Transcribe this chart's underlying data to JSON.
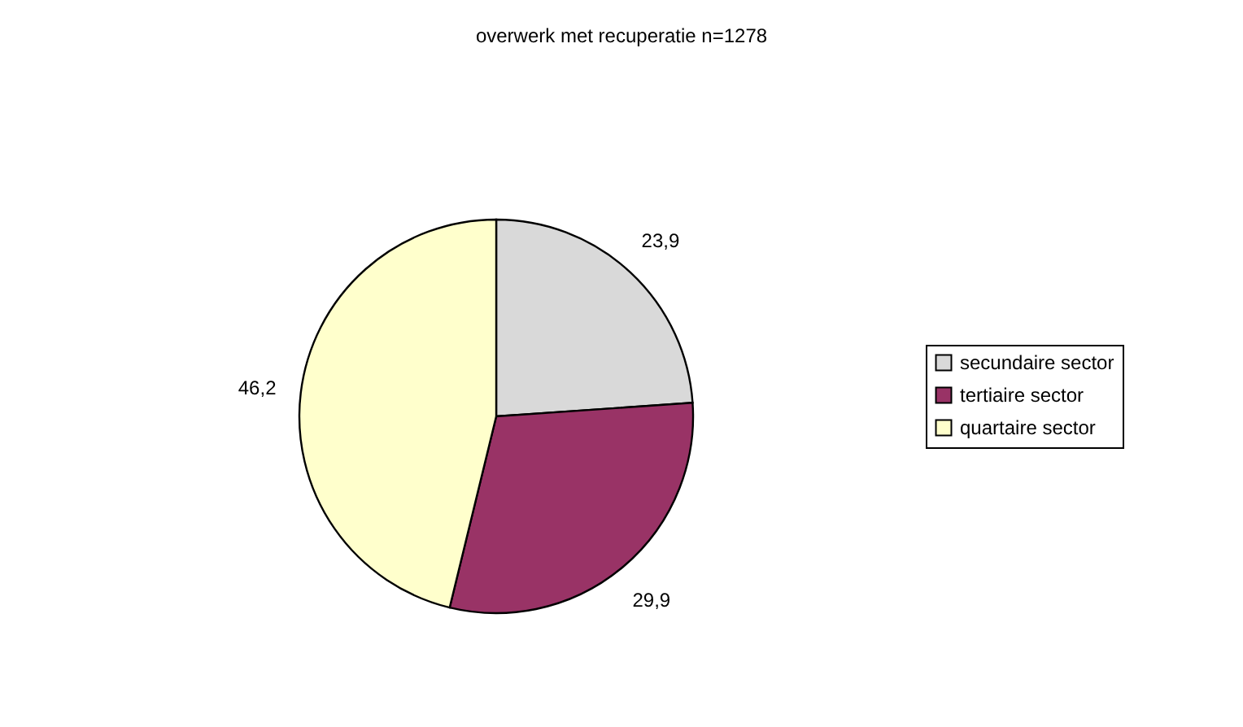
{
  "chart_data": {
    "type": "pie",
    "title": "overwerk met recuperatie n=1278",
    "categories": [
      "secundaire sector",
      "tertiaire sector",
      "quartaire sector"
    ],
    "values": [
      23.9,
      29.9,
      46.2
    ],
    "colors": [
      "#d9d9d9",
      "#993366",
      "#ffffcc"
    ],
    "value_labels": [
      "23,9",
      "29,9",
      "46,2"
    ],
    "legend": "right"
  }
}
